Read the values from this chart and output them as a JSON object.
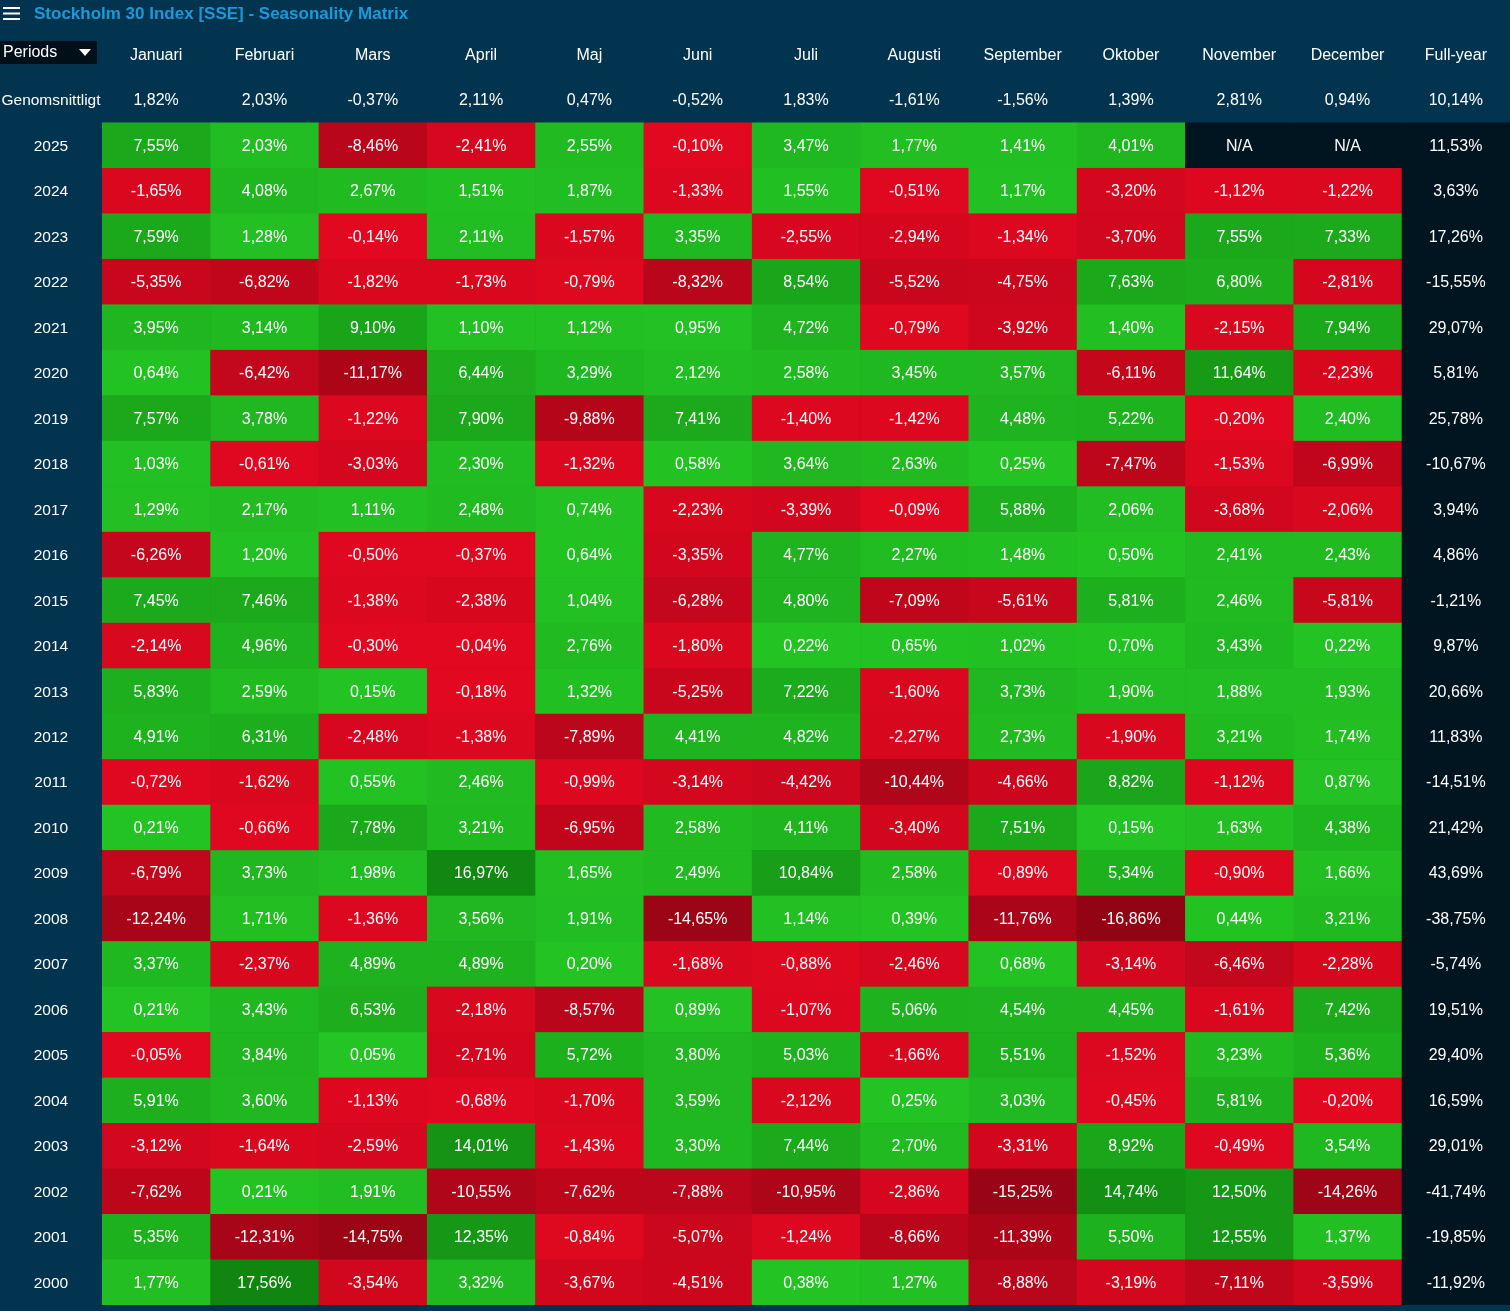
{
  "chart_data": {
    "type": "heatmap",
    "title": "Stockholm 30 Index [SSE] - Seasonality Matrix",
    "ylabel": "Periods",
    "categories": [
      "Januari",
      "Februari",
      "Mars",
      "April",
      "Maj",
      "Juni",
      "Juli",
      "Augusti",
      "September",
      "Oktober",
      "November",
      "December",
      "Full-year"
    ],
    "y_categories": [
      "Genomsnittligt",
      "2025",
      "2024",
      "2023",
      "2022",
      "2021",
      "2020",
      "2019",
      "2018",
      "2017",
      "2016",
      "2015",
      "2014",
      "2013",
      "2012",
      "2011",
      "2010",
      "2009",
      "2008",
      "2007",
      "2006",
      "2005",
      "2004",
      "2003",
      "2002",
      "2001",
      "2000"
    ],
    "cells": [
      [
        1.82,
        2.03,
        -0.37,
        2.11,
        0.47,
        -0.52,
        1.83,
        -1.61,
        -1.56,
        1.39,
        2.81,
        0.94,
        10.14
      ],
      [
        7.55,
        2.03,
        -8.46,
        -2.41,
        2.55,
        -0.1,
        3.47,
        1.77,
        1.41,
        4.01,
        null,
        null,
        11.53
      ],
      [
        -1.65,
        4.08,
        2.67,
        1.51,
        1.87,
        -1.33,
        1.55,
        -0.51,
        1.17,
        -3.2,
        -1.12,
        -1.22,
        3.63
      ],
      [
        7.59,
        1.28,
        -0.14,
        2.11,
        -1.57,
        3.35,
        -2.55,
        -2.94,
        -1.34,
        -3.7,
        7.55,
        7.33,
        17.26
      ],
      [
        -5.35,
        -6.82,
        -1.82,
        -1.73,
        -0.79,
        -8.32,
        8.54,
        -5.52,
        -4.75,
        7.63,
        6.8,
        -2.81,
        -15.55
      ],
      [
        3.95,
        3.14,
        9.1,
        1.1,
        1.12,
        0.95,
        4.72,
        -0.79,
        -3.92,
        1.4,
        -2.15,
        7.94,
        29.07
      ],
      [
        0.64,
        -6.42,
        -11.17,
        6.44,
        3.29,
        2.12,
        2.58,
        3.45,
        3.57,
        -6.11,
        11.64,
        -2.23,
        5.81
      ],
      [
        7.57,
        3.78,
        -1.22,
        7.9,
        -9.88,
        7.41,
        -1.4,
        -1.42,
        4.48,
        5.22,
        -0.2,
        2.4,
        25.78
      ],
      [
        1.03,
        -0.61,
        -3.03,
        2.3,
        -1.32,
        0.58,
        3.64,
        2.63,
        0.25,
        -7.47,
        -1.53,
        -6.99,
        -10.67
      ],
      [
        1.29,
        2.17,
        1.11,
        2.48,
        0.74,
        -2.23,
        -3.39,
        -0.09,
        5.88,
        2.06,
        -3.68,
        -2.06,
        3.94
      ],
      [
        -6.26,
        1.2,
        -0.5,
        -0.37,
        0.64,
        -3.35,
        4.77,
        2.27,
        1.48,
        0.5,
        2.41,
        2.43,
        4.86
      ],
      [
        7.45,
        7.46,
        -1.38,
        -2.38,
        1.04,
        -6.28,
        4.8,
        -7.09,
        -5.61,
        5.81,
        2.46,
        -5.81,
        -1.21
      ],
      [
        -2.14,
        4.96,
        -0.3,
        -0.04,
        2.76,
        -1.8,
        0.22,
        0.65,
        1.02,
        0.7,
        3.43,
        0.22,
        9.87
      ],
      [
        5.83,
        2.59,
        0.15,
        -0.18,
        1.32,
        -5.25,
        7.22,
        -1.6,
        3.73,
        1.9,
        1.88,
        1.93,
        20.66
      ],
      [
        4.91,
        6.31,
        -2.48,
        -1.38,
        -7.89,
        4.41,
        4.82,
        -2.27,
        2.73,
        -1.9,
        3.21,
        1.74,
        11.83
      ],
      [
        -0.72,
        -1.62,
        0.55,
        2.46,
        -0.99,
        -3.14,
        -4.42,
        -10.44,
        -4.66,
        8.82,
        -1.12,
        0.87,
        -14.51
      ],
      [
        0.21,
        -0.66,
        7.78,
        3.21,
        -6.95,
        2.58,
        4.11,
        -3.4,
        7.51,
        0.15,
        1.63,
        4.38,
        21.42
      ],
      [
        -6.79,
        3.73,
        1.98,
        16.97,
        1.65,
        2.49,
        10.84,
        2.58,
        -0.89,
        5.34,
        -0.9,
        1.66,
        43.69
      ],
      [
        -12.24,
        1.71,
        -1.36,
        3.56,
        1.91,
        -14.65,
        1.14,
        0.39,
        -11.76,
        -16.86,
        0.44,
        3.21,
        -38.75
      ],
      [
        3.37,
        -2.37,
        4.89,
        4.89,
        0.2,
        -1.68,
        -0.88,
        -2.46,
        0.68,
        -3.14,
        -6.46,
        -2.28,
        -5.74
      ],
      [
        0.21,
        3.43,
        6.53,
        -2.18,
        -8.57,
        0.89,
        -1.07,
        5.06,
        4.54,
        4.45,
        -1.61,
        7.42,
        19.51
      ],
      [
        -0.05,
        3.84,
        0.05,
        -2.71,
        5.72,
        3.8,
        5.03,
        -1.66,
        5.51,
        -1.52,
        3.23,
        5.36,
        29.4
      ],
      [
        5.91,
        3.6,
        -1.13,
        -0.68,
        -1.7,
        3.59,
        -2.12,
        0.25,
        3.03,
        -0.45,
        5.81,
        -0.2,
        16.59
      ],
      [
        -3.12,
        -1.64,
        -2.59,
        14.01,
        -1.43,
        3.3,
        7.44,
        2.7,
        -3.31,
        8.92,
        -0.49,
        3.54,
        29.01
      ],
      [
        -7.62,
        0.21,
        1.91,
        -10.55,
        -7.62,
        -7.88,
        -10.95,
        -2.86,
        -15.25,
        14.74,
        12.5,
        -14.26,
        -41.74
      ],
      [
        5.35,
        -12.31,
        -14.75,
        12.35,
        -0.84,
        -5.07,
        -1.24,
        -8.66,
        -11.39,
        5.5,
        12.55,
        1.37,
        -19.85
      ],
      [
        1.77,
        17.56,
        -3.54,
        3.32,
        -3.67,
        -4.51,
        0.38,
        1.27,
        -8.88,
        -3.19,
        -7.11,
        -3.59,
        -11.92
      ]
    ],
    "cell_labels": [
      [
        "1,82%",
        "2,03%",
        "-0,37%",
        "2,11%",
        "0,47%",
        "-0,52%",
        "1,83%",
        "-1,61%",
        "-1,56%",
        "1,39%",
        "2,81%",
        "0,94%",
        "10,14%"
      ],
      [
        "7,55%",
        "2,03%",
        "-8,46%",
        "-2,41%",
        "2,55%",
        "-0,10%",
        "3,47%",
        "1,77%",
        "1,41%",
        "4,01%",
        "N/A",
        "N/A",
        "11,53%"
      ],
      [
        "-1,65%",
        "4,08%",
        "2,67%",
        "1,51%",
        "1,87%",
        "-1,33%",
        "1,55%",
        "-0,51%",
        "1,17%",
        "-3,20%",
        "-1,12%",
        "-1,22%",
        "3,63%"
      ],
      [
        "7,59%",
        "1,28%",
        "-0,14%",
        "2,11%",
        "-1,57%",
        "3,35%",
        "-2,55%",
        "-2,94%",
        "-1,34%",
        "-3,70%",
        "7,55%",
        "7,33%",
        "17,26%"
      ],
      [
        "-5,35%",
        "-6,82%",
        "-1,82%",
        "-1,73%",
        "-0,79%",
        "-8,32%",
        "8,54%",
        "-5,52%",
        "-4,75%",
        "7,63%",
        "6,80%",
        "-2,81%",
        "-15,55%"
      ],
      [
        "3,95%",
        "3,14%",
        "9,10%",
        "1,10%",
        "1,12%",
        "0,95%",
        "4,72%",
        "-0,79%",
        "-3,92%",
        "1,40%",
        "-2,15%",
        "7,94%",
        "29,07%"
      ],
      [
        "0,64%",
        "-6,42%",
        "-11,17%",
        "6,44%",
        "3,29%",
        "2,12%",
        "2,58%",
        "3,45%",
        "3,57%",
        "-6,11%",
        "11,64%",
        "-2,23%",
        "5,81%"
      ],
      [
        "7,57%",
        "3,78%",
        "-1,22%",
        "7,90%",
        "-9,88%",
        "7,41%",
        "-1,40%",
        "-1,42%",
        "4,48%",
        "5,22%",
        "-0,20%",
        "2,40%",
        "25,78%"
      ],
      [
        "1,03%",
        "-0,61%",
        "-3,03%",
        "2,30%",
        "-1,32%",
        "0,58%",
        "3,64%",
        "2,63%",
        "0,25%",
        "-7,47%",
        "-1,53%",
        "-6,99%",
        "-10,67%"
      ],
      [
        "1,29%",
        "2,17%",
        "1,11%",
        "2,48%",
        "0,74%",
        "-2,23%",
        "-3,39%",
        "-0,09%",
        "5,88%",
        "2,06%",
        "-3,68%",
        "-2,06%",
        "3,94%"
      ],
      [
        "-6,26%",
        "1,20%",
        "-0,50%",
        "-0,37%",
        "0,64%",
        "-3,35%",
        "4,77%",
        "2,27%",
        "1,48%",
        "0,50%",
        "2,41%",
        "2,43%",
        "4,86%"
      ],
      [
        "7,45%",
        "7,46%",
        "-1,38%",
        "-2,38%",
        "1,04%",
        "-6,28%",
        "4,80%",
        "-7,09%",
        "-5,61%",
        "5,81%",
        "2,46%",
        "-5,81%",
        "-1,21%"
      ],
      [
        "-2,14%",
        "4,96%",
        "-0,30%",
        "-0,04%",
        "2,76%",
        "-1,80%",
        "0,22%",
        "0,65%",
        "1,02%",
        "0,70%",
        "3,43%",
        "0,22%",
        "9,87%"
      ],
      [
        "5,83%",
        "2,59%",
        "0,15%",
        "-0,18%",
        "1,32%",
        "-5,25%",
        "7,22%",
        "-1,60%",
        "3,73%",
        "1,90%",
        "1,88%",
        "1,93%",
        "20,66%"
      ],
      [
        "4,91%",
        "6,31%",
        "-2,48%",
        "-1,38%",
        "-7,89%",
        "4,41%",
        "4,82%",
        "-2,27%",
        "2,73%",
        "-1,90%",
        "3,21%",
        "1,74%",
        "11,83%"
      ],
      [
        "-0,72%",
        "-1,62%",
        "0,55%",
        "2,46%",
        "-0,99%",
        "-3,14%",
        "-4,42%",
        "-10,44%",
        "-4,66%",
        "8,82%",
        "-1,12%",
        "0,87%",
        "-14,51%"
      ],
      [
        "0,21%",
        "-0,66%",
        "7,78%",
        "3,21%",
        "-6,95%",
        "2,58%",
        "4,11%",
        "-3,40%",
        "7,51%",
        "0,15%",
        "1,63%",
        "4,38%",
        "21,42%"
      ],
      [
        "-6,79%",
        "3,73%",
        "1,98%",
        "16,97%",
        "1,65%",
        "2,49%",
        "10,84%",
        "2,58%",
        "-0,89%",
        "5,34%",
        "-0,90%",
        "1,66%",
        "43,69%"
      ],
      [
        "-12,24%",
        "1,71%",
        "-1,36%",
        "3,56%",
        "1,91%",
        "-14,65%",
        "1,14%",
        "0,39%",
        "-11,76%",
        "-16,86%",
        "0,44%",
        "3,21%",
        "-38,75%"
      ],
      [
        "3,37%",
        "-2,37%",
        "4,89%",
        "4,89%",
        "0,20%",
        "-1,68%",
        "-0,88%",
        "-2,46%",
        "0,68%",
        "-3,14%",
        "-6,46%",
        "-2,28%",
        "-5,74%"
      ],
      [
        "0,21%",
        "3,43%",
        "6,53%",
        "-2,18%",
        "-8,57%",
        "0,89%",
        "-1,07%",
        "5,06%",
        "4,54%",
        "4,45%",
        "-1,61%",
        "7,42%",
        "19,51%"
      ],
      [
        "-0,05%",
        "3,84%",
        "0,05%",
        "-2,71%",
        "5,72%",
        "3,80%",
        "5,03%",
        "-1,66%",
        "5,51%",
        "-1,52%",
        "3,23%",
        "5,36%",
        "29,40%"
      ],
      [
        "5,91%",
        "3,60%",
        "-1,13%",
        "-0,68%",
        "-1,70%",
        "3,59%",
        "-2,12%",
        "0,25%",
        "3,03%",
        "-0,45%",
        "5,81%",
        "-0,20%",
        "16,59%"
      ],
      [
        "-3,12%",
        "-1,64%",
        "-2,59%",
        "14,01%",
        "-1,43%",
        "3,30%",
        "7,44%",
        "2,70%",
        "-3,31%",
        "8,92%",
        "-0,49%",
        "3,54%",
        "29,01%"
      ],
      [
        "-7,62%",
        "0,21%",
        "1,91%",
        "-10,55%",
        "-7,62%",
        "-7,88%",
        "-10,95%",
        "-2,86%",
        "-15,25%",
        "14,74%",
        "12,50%",
        "-14,26%",
        "-41,74%"
      ],
      [
        "5,35%",
        "-12,31%",
        "-14,75%",
        "12,35%",
        "-0,84%",
        "-5,07%",
        "-1,24%",
        "-8,66%",
        "-11,39%",
        "5,50%",
        "12,55%",
        "1,37%",
        "-19,85%"
      ],
      [
        "1,77%",
        "17,56%",
        "-3,54%",
        "3,32%",
        "-3,67%",
        "-4,51%",
        "0,38%",
        "1,27%",
        "-8,88%",
        "-3,19%",
        "-7,11%",
        "-3,59%",
        "-11,92%"
      ]
    ]
  }
}
